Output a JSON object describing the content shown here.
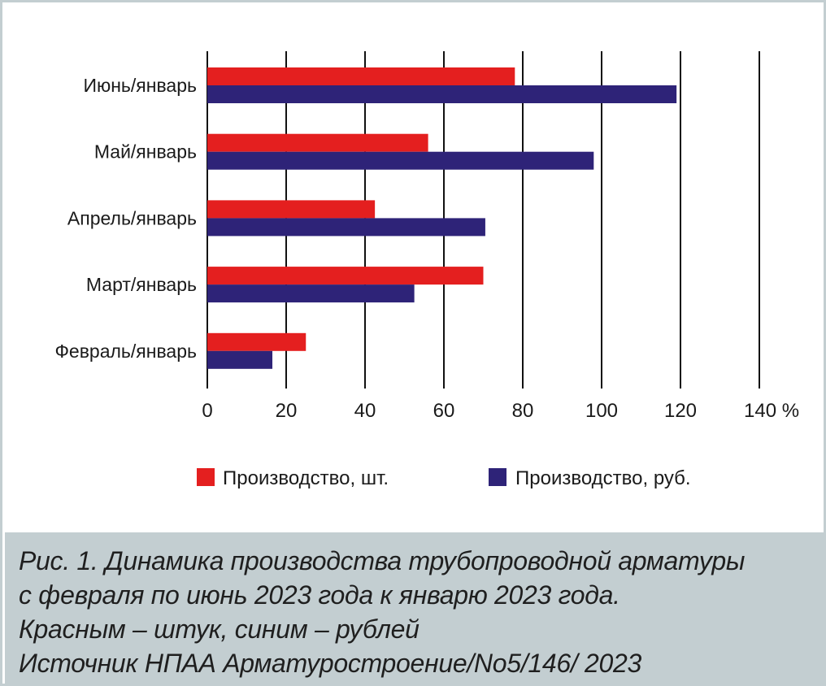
{
  "chart_data": {
    "type": "bar",
    "orientation": "horizontal",
    "categories": [
      "Февраль/январь",
      "Март/январь",
      "Апрель/январь",
      "Май/январь",
      "Июнь/январь"
    ],
    "series": [
      {
        "name": "Производство, шт.",
        "color": "#e41f1f",
        "values": [
          25,
          70,
          42.5,
          56,
          78
        ]
      },
      {
        "name": "Производство, руб.",
        "color": "#2e2378",
        "values": [
          16.5,
          52.5,
          70.5,
          98,
          119
        ]
      }
    ],
    "xlim": [
      0,
      140
    ],
    "xticks": [
      0,
      20,
      40,
      60,
      80,
      100,
      120,
      140
    ],
    "xtick_labels": [
      "0",
      "20",
      "40",
      "60",
      "80",
      "100",
      "120",
      "140 %"
    ],
    "grid": "vertical",
    "legend_position": "bottom"
  },
  "caption": {
    "lines": [
      "Рис. 1. Динамика производства трубопроводной арматуры",
      "с февраля по июнь 2023 года к январю 2023 года.",
      "Красным – штук, синим – рублей",
      "Источник НПАА Арматуростроение/No5/146/ 2023"
    ]
  }
}
